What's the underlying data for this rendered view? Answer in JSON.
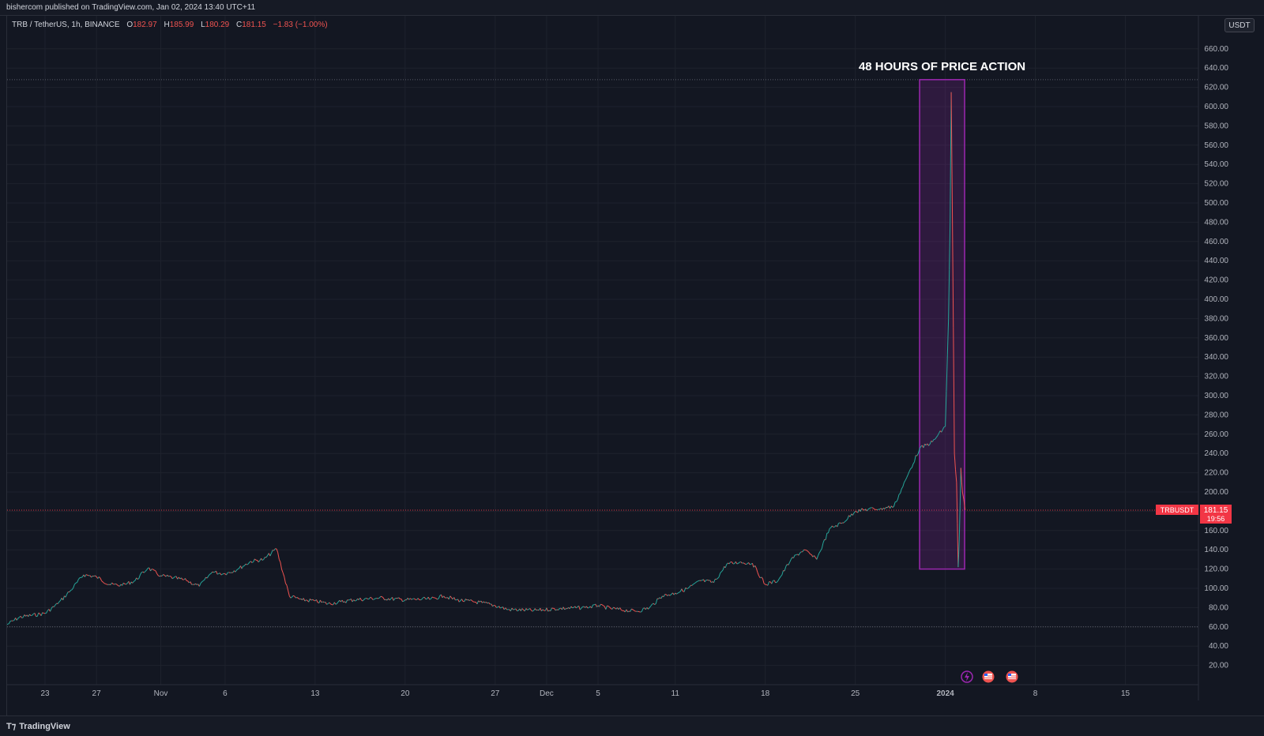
{
  "publish_line": "bishercom published on TradingView.com, Jan 02, 2024 13:40 UTC+11",
  "legend": {
    "symbol": "TRB / TetherUS, 1h, BINANCE",
    "o_label": "O",
    "o_val": "182.97",
    "h_label": "H",
    "h_val": "185.99",
    "l_label": "L",
    "l_val": "180.29",
    "c_label": "C",
    "c_val": "181.15",
    "change": "−1.83 (−1.00%)"
  },
  "currency_button": "USDT",
  "annotation": "48 HOURS OF PRICE ACTION",
  "price_label": {
    "symbol": "TRBUSDT",
    "price": "181.15",
    "countdown": "19:56"
  },
  "footer_brand": "TradingView",
  "colors": {
    "background": "#131722",
    "up": "#26a69a",
    "down": "#ef5350",
    "highlight_border": "#9c27b0",
    "highlight_fill": "#9c27b0",
    "last_price": "#f23645"
  },
  "chart_data": {
    "type": "candlestick-line",
    "title": "",
    "ylim": [
      0,
      680
    ],
    "y_ticks": [
      "20.00",
      "40.00",
      "60.00",
      "80.00",
      "100.00",
      "120.00",
      "140.00",
      "160.00",
      "180.00",
      "200.00",
      "220.00",
      "240.00",
      "260.00",
      "280.00",
      "300.00",
      "320.00",
      "340.00",
      "360.00",
      "380.00",
      "400.00",
      "420.00",
      "440.00",
      "460.00",
      "480.00",
      "500.00",
      "520.00",
      "540.00",
      "560.00",
      "580.00",
      "600.00",
      "620.00",
      "640.00",
      "660.00"
    ],
    "x_ticks": [
      {
        "label": "23",
        "date": "2023-10-23"
      },
      {
        "label": "27",
        "date": "2023-10-27"
      },
      {
        "label": "Nov",
        "date": "2023-11-01"
      },
      {
        "label": "6",
        "date": "2023-11-06"
      },
      {
        "label": "13",
        "date": "2023-11-13"
      },
      {
        "label": "20",
        "date": "2023-11-20"
      },
      {
        "label": "27",
        "date": "2023-11-27"
      },
      {
        "label": "Dec",
        "date": "2023-12-01"
      },
      {
        "label": "5",
        "date": "2023-12-05"
      },
      {
        "label": "11",
        "date": "2023-12-11"
      },
      {
        "label": "18",
        "date": "2023-12-18"
      },
      {
        "label": "25",
        "date": "2023-12-25"
      },
      {
        "label": "2024",
        "date": "2024-01-01"
      },
      {
        "label": "8",
        "date": "2024-01-08"
      },
      {
        "label": "15",
        "date": "2024-01-15"
      }
    ],
    "series": [
      {
        "points": [
          [
            "2023-10-20",
            62
          ],
          [
            "2023-10-21",
            70
          ],
          [
            "2023-10-22",
            72
          ],
          [
            "2023-10-23",
            74
          ],
          [
            "2023-10-24",
            84
          ],
          [
            "2023-10-25",
            98
          ],
          [
            "2023-10-26",
            114
          ],
          [
            "2023-10-27",
            112
          ],
          [
            "2023-10-28",
            104
          ],
          [
            "2023-10-29",
            103
          ],
          [
            "2023-10-30",
            108
          ],
          [
            "2023-10-31",
            121
          ],
          [
            "2023-11-01",
            113
          ],
          [
            "2023-11-02",
            111
          ],
          [
            "2023-11-03",
            108
          ],
          [
            "2023-11-04",
            102
          ],
          [
            "2023-11-05",
            117
          ],
          [
            "2023-11-06",
            115
          ],
          [
            "2023-11-07",
            120
          ],
          [
            "2023-11-08",
            128
          ],
          [
            "2023-11-09",
            130
          ],
          [
            "2023-11-10",
            141
          ],
          [
            "2023-11-11",
            92
          ],
          [
            "2023-11-12",
            88
          ],
          [
            "2023-11-13",
            87
          ],
          [
            "2023-11-14",
            84
          ],
          [
            "2023-11-15",
            86
          ],
          [
            "2023-11-16",
            88
          ],
          [
            "2023-11-18",
            90
          ],
          [
            "2023-11-20",
            88
          ],
          [
            "2023-11-22",
            89
          ],
          [
            "2023-11-23",
            92
          ],
          [
            "2023-11-24",
            88
          ],
          [
            "2023-11-26",
            85
          ],
          [
            "2023-11-27",
            82
          ],
          [
            "2023-11-28",
            78
          ],
          [
            "2023-11-30",
            77
          ],
          [
            "2023-12-02",
            79
          ],
          [
            "2023-12-04",
            80
          ],
          [
            "2023-12-05",
            82
          ],
          [
            "2023-12-06",
            79
          ],
          [
            "2023-12-08",
            76
          ],
          [
            "2023-12-09",
            80
          ],
          [
            "2023-12-10",
            92
          ],
          [
            "2023-12-11",
            95
          ],
          [
            "2023-12-12",
            100
          ],
          [
            "2023-12-13",
            108
          ],
          [
            "2023-12-14",
            106
          ],
          [
            "2023-12-15",
            125
          ],
          [
            "2023-12-16",
            127
          ],
          [
            "2023-12-17",
            126
          ],
          [
            "2023-12-18",
            104
          ],
          [
            "2023-12-19",
            108
          ],
          [
            "2023-12-20",
            130
          ],
          [
            "2023-12-21",
            140
          ],
          [
            "2023-12-22",
            130
          ],
          [
            "2023-12-23",
            162
          ],
          [
            "2023-12-24",
            168
          ],
          [
            "2023-12-25",
            180
          ],
          [
            "2023-12-26",
            182
          ],
          [
            "2023-12-27",
            183
          ],
          [
            "2023-12-28",
            185
          ],
          [
            "2023-12-29",
            215
          ],
          [
            "2023-12-30",
            245
          ],
          [
            "2023-12-31",
            252
          ],
          [
            "2024-01-01",
            268
          ],
          [
            "2024-01-01T06",
            380
          ],
          [
            "2024-01-01T09",
            480
          ],
          [
            "2024-01-01T11",
            615
          ],
          [
            "2024-01-01T13",
            500
          ],
          [
            "2024-01-01T17",
            240
          ],
          [
            "2024-01-01T21",
            210
          ],
          [
            "2024-01-02",
            122
          ],
          [
            "2024-01-02T02",
            150
          ],
          [
            "2024-01-02T05",
            225
          ],
          [
            "2024-01-02T08",
            200
          ],
          [
            "2024-01-02T13",
            181.15
          ]
        ]
      }
    ],
    "highlight_box": {
      "x_start": "2023-12-30",
      "x_end": "2024-01-02T12",
      "y_start": 120,
      "y_end": 628
    },
    "horizontal_lines": [
      {
        "y": 628,
        "style": "dotted"
      },
      {
        "y": 181.15,
        "style": "dotted"
      },
      {
        "y": 60,
        "style": "dotted"
      }
    ],
    "last_price": 181.15,
    "event_icons": [
      "lightning-icon",
      "us-flag-icon",
      "us-flag-icon"
    ],
    "grid": true,
    "legend": "top-left"
  }
}
